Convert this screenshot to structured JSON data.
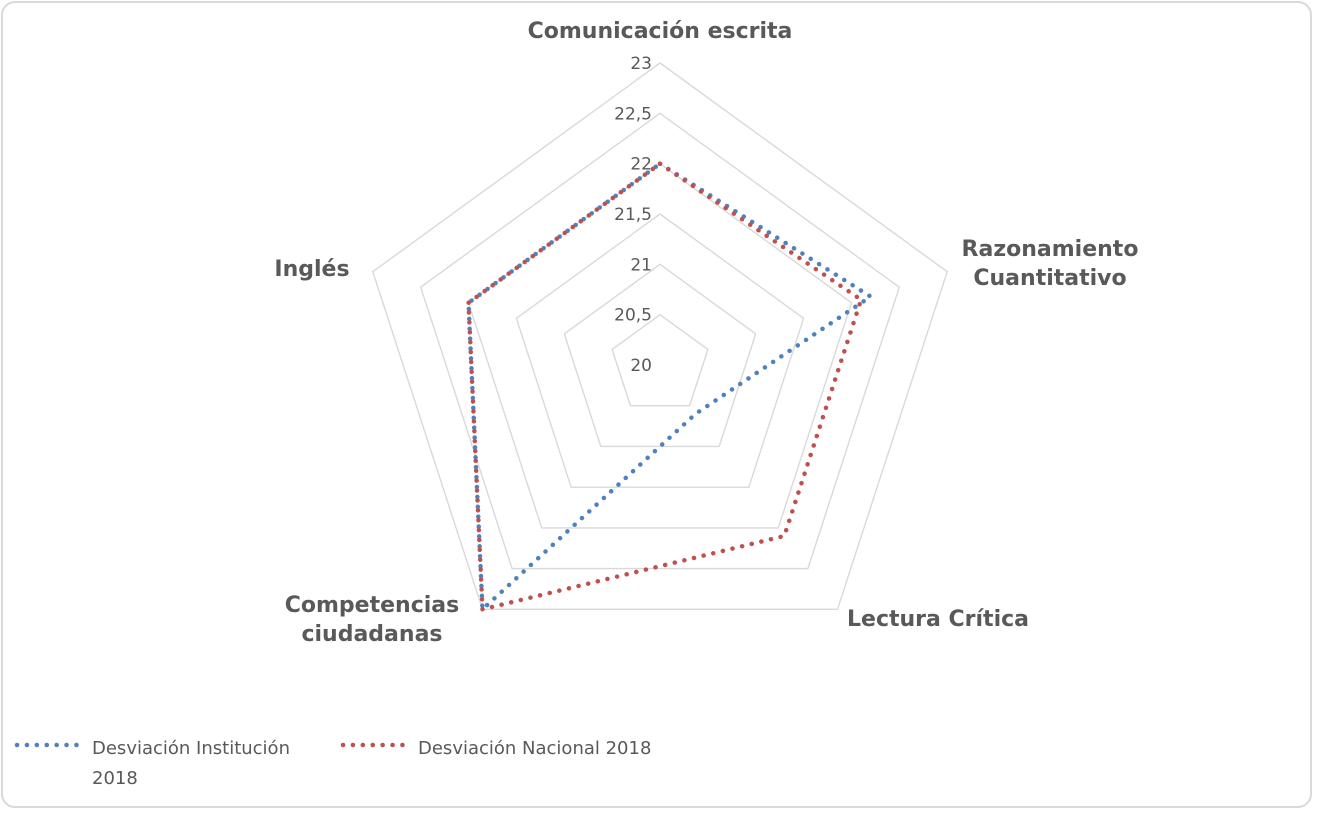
{
  "chart_data": {
    "type": "radar",
    "axes": [
      "Comunicación escrita",
      "Razonamiento Cuantitativo",
      "Lectura Crítica",
      "Competencias ciudadanas",
      "Inglés"
    ],
    "axis_label_lines": [
      [
        "Comunicación escrita"
      ],
      [
        "Razonamiento",
        "Cuantitativo"
      ],
      [
        "Lectura Crítica"
      ],
      [
        "Competencias",
        "ciudadanas"
      ],
      [
        "Inglés"
      ]
    ],
    "ticks": [
      "20",
      "20,5",
      "21",
      "21,5",
      "22",
      "22,5",
      "23"
    ],
    "tick_values": [
      20,
      20.5,
      21,
      21.5,
      22,
      22.5,
      23
    ],
    "rlim": [
      20,
      23
    ],
    "grid": true,
    "legend_position": "bottom-left",
    "series": [
      {
        "name": "Desviación Institución 2018",
        "name_lines": [
          "Desviación Institución",
          "2018"
        ],
        "color": "#4f81bd",
        "style": "dotted",
        "values": [
          22,
          22.2,
          20.6,
          23,
          22
        ]
      },
      {
        "name": "Desviación Nacional 2018",
        "name_lines": [
          "Desviación Nacional 2018"
        ],
        "color": "#c0504d",
        "style": "dotted",
        "values": [
          22,
          22.1,
          22.1,
          23,
          22
        ]
      }
    ]
  }
}
